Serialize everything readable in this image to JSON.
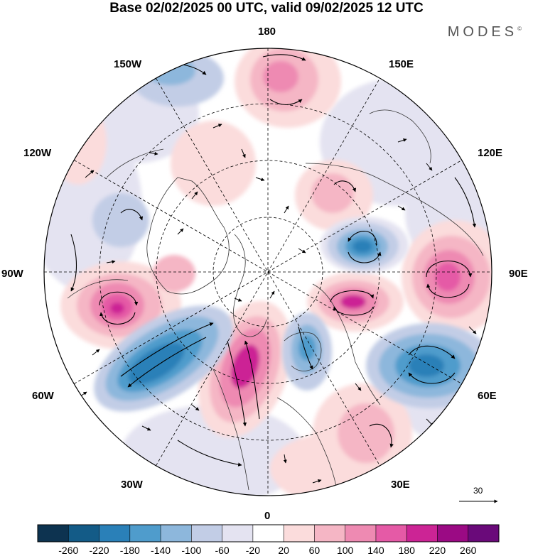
{
  "title": "Base 02/02/2025 00 UTC, valid 09/02/2025 12 UTC",
  "brand": "MODES",
  "brand_mark": "©",
  "longitude_labels": {
    "lon_180": "180",
    "lon_150w": "150W",
    "lon_150e": "150E",
    "lon_120w": "120W",
    "lon_120e": "120E",
    "lon_90w": "90W",
    "lon_90e": "90E",
    "lon_60w": "60W",
    "lon_60e": "60E",
    "lon_30w": "30W",
    "lon_30e": "30E",
    "lon_0": "0"
  },
  "reference_vector_label": "30",
  "colorbar": {
    "colors": [
      "#0d3350",
      "#135b87",
      "#2a80b8",
      "#4f9ccc",
      "#8db7dc",
      "#c2cde6",
      "#e4e3f1",
      "#ffffff",
      "#fbdcdc",
      "#f5b6c5",
      "#ee8ab2",
      "#e55aa6",
      "#cc2495",
      "#9b0a84",
      "#6a0a7a"
    ],
    "tick_labels": [
      "-260",
      "-220",
      "-180",
      "-140",
      "-100",
      "-60",
      "-20",
      "20",
      "60",
      "100",
      "140",
      "180",
      "220",
      "260"
    ]
  }
}
